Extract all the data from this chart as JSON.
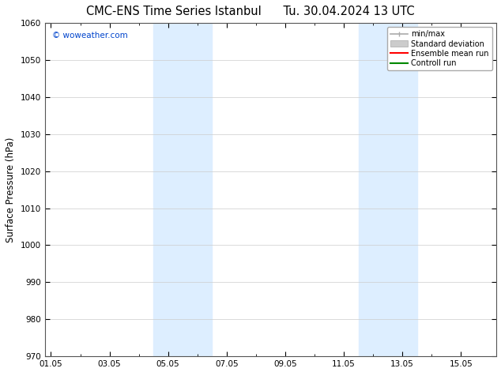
{
  "title_left": "CMC-ENS Time Series Istanbul",
  "title_right": "Tu. 30.04.2024 13 UTC",
  "ylabel": "Surface Pressure (hPa)",
  "ylim": [
    970,
    1060
  ],
  "yticks": [
    970,
    980,
    990,
    1000,
    1010,
    1020,
    1030,
    1040,
    1050,
    1060
  ],
  "xtick_labels": [
    "01.05",
    "03.05",
    "05.05",
    "07.05",
    "09.05",
    "11.05",
    "13.05",
    "15.05"
  ],
  "xtick_positions": [
    0,
    2,
    4,
    6,
    8,
    10,
    12,
    14
  ],
  "xlim": [
    -0.2,
    15.2
  ],
  "shaded_bands": [
    {
      "x_start": 3.5,
      "x_end": 5.5,
      "color": "#ddeeff"
    },
    {
      "x_start": 10.5,
      "x_end": 12.5,
      "color": "#ddeeff"
    }
  ],
  "watermark": "© woweather.com",
  "legend_entries": [
    {
      "label": "min/max",
      "color": "#aaaaaa",
      "lw": 1.2
    },
    {
      "label": "Standard deviation",
      "color": "#cccccc",
      "lw": 6
    },
    {
      "label": "Ensemble mean run",
      "color": "#ff0000",
      "lw": 1.5
    },
    {
      "label": "Controll run",
      "color": "#008800",
      "lw": 1.5
    }
  ],
  "background_color": "#ffffff",
  "plot_bg_color": "#ffffff",
  "grid_color": "#cccccc",
  "border_color": "#555555",
  "title_fontsize": 10.5,
  "label_fontsize": 8.5,
  "tick_fontsize": 7.5,
  "legend_fontsize": 7.0
}
